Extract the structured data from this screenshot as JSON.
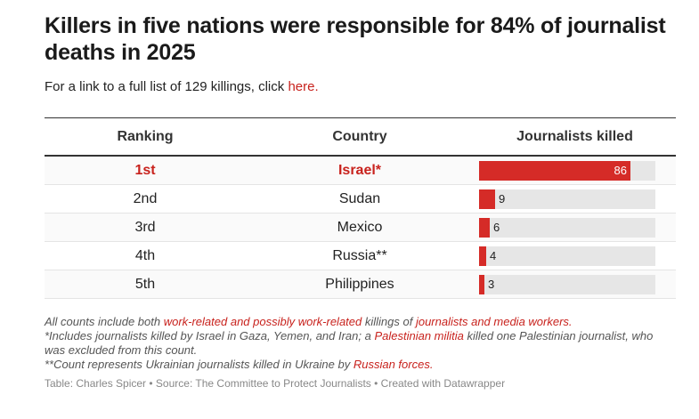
{
  "title": "Killers in five nations were responsible for 84% of journalist deaths in 2025",
  "description": {
    "text": "For a link to a full list of 129 killings, click ",
    "link": "here."
  },
  "table": {
    "headers": [
      "Ranking",
      "Country",
      "Journalists killed"
    ]
  },
  "chart_data": {
    "type": "bar",
    "categories": [
      "Israel*",
      "Sudan",
      "Mexico",
      "Russia**",
      "Philippines"
    ],
    "rankings": [
      "1st",
      "2nd",
      "3rd",
      "4th",
      "5th"
    ],
    "values": [
      86,
      9,
      6,
      4,
      3
    ],
    "xlim": [
      0,
      100
    ],
    "highlight_index": 0,
    "bar_color": "#d52b27",
    "track_color": "#e6e6e6",
    "highlight_text_color": "#c8221d"
  },
  "notes": {
    "line1": {
      "a": "All counts include both ",
      "link1": "work-related and possibly work-related",
      "b": " killings of ",
      "link2": "journalists and media workers.",
      "c": ""
    },
    "line2": {
      "a": "*Includes journalists killed by Israel in Gaza, Yemen, and Iran; a ",
      "link1": "Palestinian militia",
      "b": " killed one Palestinian journalist, who was excluded from this count."
    },
    "line3": {
      "a": "**Count represents Ukrainian journalists killed in Ukraine by ",
      "link1": "Russian forces."
    }
  },
  "footer": "Table: Charles Spicer • Source: The Committee to Protect Journalists • Created with Datawrapper"
}
